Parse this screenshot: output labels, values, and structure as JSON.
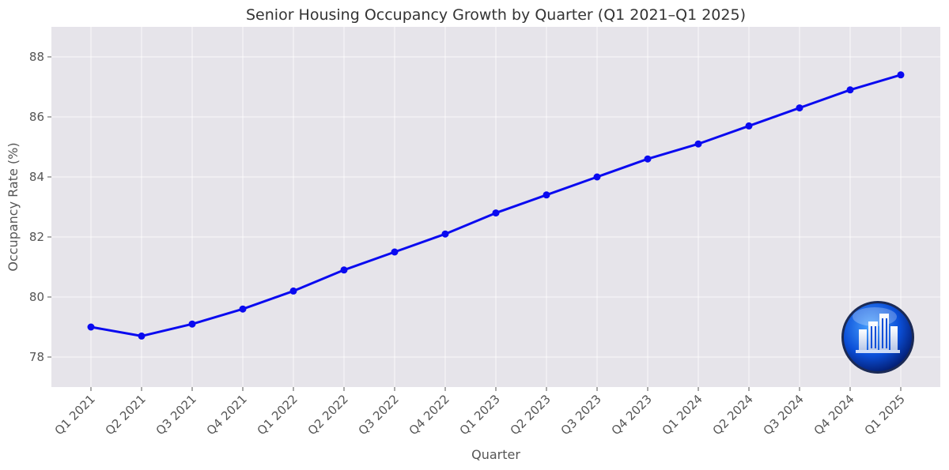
{
  "chart_data": {
    "type": "line",
    "title": "Senior Housing Occupancy Growth by Quarter (Q1 2021–Q1 2025)",
    "xlabel": "Quarter",
    "ylabel": "Occupancy Rate (%)",
    "categories": [
      "Q1 2021",
      "Q2 2021",
      "Q3 2021",
      "Q4 2021",
      "Q1 2022",
      "Q2 2022",
      "Q3 2022",
      "Q4 2022",
      "Q1 2023",
      "Q2 2023",
      "Q3 2023",
      "Q4 2023",
      "Q1 2024",
      "Q2 2024",
      "Q3 2024",
      "Q4 2024",
      "Q1 2025"
    ],
    "series": [
      {
        "values": [
          79.0,
          78.7,
          79.1,
          79.6,
          80.2,
          80.9,
          81.5,
          82.1,
          82.8,
          83.4,
          84.0,
          84.6,
          85.1,
          85.7,
          86.3,
          86.9,
          87.4
        ],
        "color": "#0a0af0"
      }
    ],
    "ylim": [
      77.0,
      89.0
    ],
    "yticks": [
      78,
      80,
      82,
      84,
      86,
      88
    ],
    "grid": true,
    "background": "#e6e4ea",
    "logo": "blue-globe-buildings-logo"
  }
}
